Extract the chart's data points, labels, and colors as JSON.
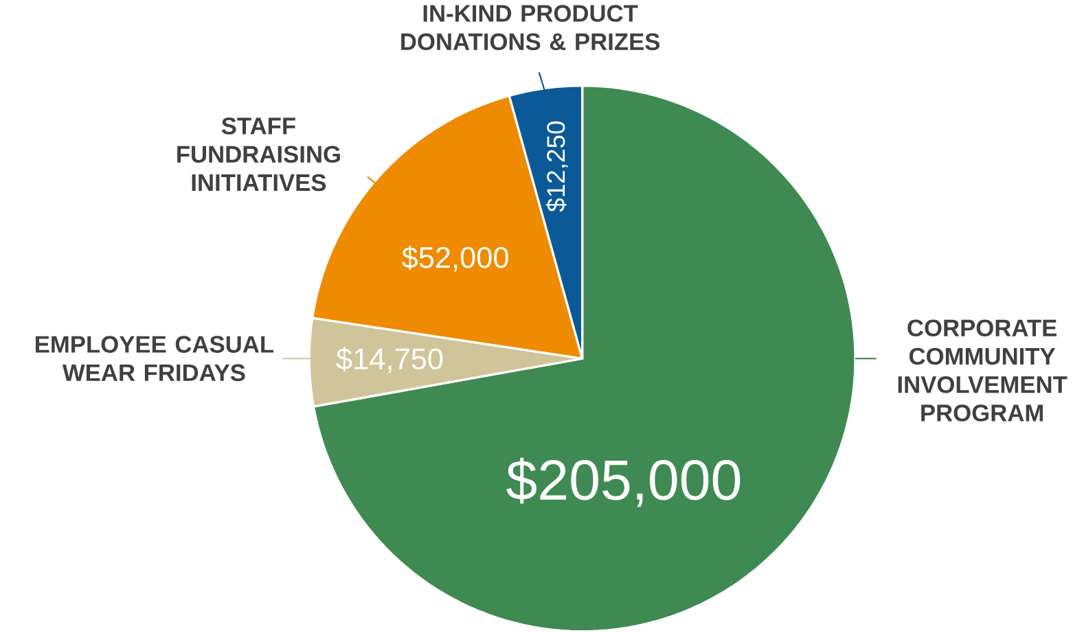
{
  "chart_data": {
    "type": "pie",
    "categories": [
      "CORPORATE COMMUNITY INVOLVEMENT PROGRAM",
      "EMPLOYEE CASUAL WEAR FRIDAYS",
      "STAFF FUNDRAISING INITIATIVES",
      "IN-KIND PRODUCT DONATIONS & PRIZES"
    ],
    "values": [
      205000,
      14750,
      52000,
      12250
    ],
    "value_labels": [
      "$205,000",
      "$14,750",
      "$52,000",
      "$12,250"
    ],
    "colors": [
      "#3f8a52",
      "#cfc49a",
      "#ee8b00",
      "#0b5a97"
    ]
  }
}
